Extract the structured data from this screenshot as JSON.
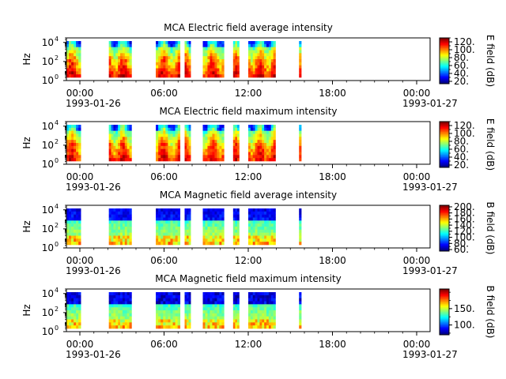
{
  "chart_data": [
    {
      "type": "heatmap",
      "title": "MCA  Electric field average intensity",
      "ylabel": "Hz",
      "ylim": [
        1,
        30000
      ],
      "yscale": "log",
      "yticks": [
        {
          "base": "10",
          "exp": "0"
        },
        {
          "base": "10",
          "exp": "2"
        },
        {
          "base": "10",
          "exp": "4"
        }
      ],
      "xticks": [
        "00:00",
        "06:00",
        "12:00",
        "18:00",
        "00:00"
      ],
      "xdates": [
        "1993-01-26",
        "1993-01-27"
      ],
      "colorbar": {
        "label": "E field (dB)",
        "range": [
          14,
          130
        ],
        "ticks": [
          "20.",
          "40.",
          "60.",
          "80.",
          "100.",
          "120."
        ]
      },
      "segments": [
        [
          0.0,
          0.95
        ],
        [
          2.8,
          4.3
        ],
        [
          5.9,
          7.5
        ],
        [
          7.8,
          8.2
        ],
        [
          9.0,
          10.4
        ],
        [
          11.0,
          11.4
        ],
        [
          12.0,
          13.8
        ],
        [
          15.35,
          15.5
        ]
      ],
      "kind": "electric"
    },
    {
      "type": "heatmap",
      "title": "MCA  Electric field maximum intensity",
      "ylabel": "Hz",
      "ylim": [
        1,
        30000
      ],
      "yscale": "log",
      "yticks": [
        {
          "base": "10",
          "exp": "0"
        },
        {
          "base": "10",
          "exp": "2"
        },
        {
          "base": "10",
          "exp": "4"
        }
      ],
      "xticks": [
        "00:00",
        "06:00",
        "12:00",
        "18:00",
        "00:00"
      ],
      "xdates": [
        "1993-01-26",
        "1993-01-27"
      ],
      "colorbar": {
        "label": "E field (dB)",
        "range": [
          14,
          130
        ],
        "ticks": [
          "20.",
          "40.",
          "60.",
          "80.",
          "100.",
          "120."
        ]
      },
      "segments": [
        [
          0.0,
          0.95
        ],
        [
          2.8,
          4.3
        ],
        [
          5.9,
          7.5
        ],
        [
          7.8,
          8.2
        ],
        [
          9.0,
          10.4
        ],
        [
          11.0,
          11.4
        ],
        [
          12.0,
          13.8
        ],
        [
          15.35,
          15.5
        ]
      ],
      "kind": "electric"
    },
    {
      "type": "heatmap",
      "title": "MCA  Magnetic field average intensity",
      "ylabel": "Hz",
      "ylim": [
        1,
        30000
      ],
      "yscale": "log",
      "yticks": [
        {
          "base": "10",
          "exp": "0"
        },
        {
          "base": "10",
          "exp": "2"
        },
        {
          "base": "10",
          "exp": "4"
        }
      ],
      "xticks": [
        "00:00",
        "06:00",
        "12:00",
        "18:00",
        "00:00"
      ],
      "xdates": [
        "1993-01-26",
        "1993-01-27"
      ],
      "colorbar": {
        "label": "B field (dB)",
        "range": [
          55,
          205
        ],
        "ticks": [
          "60.",
          "80.",
          "100.",
          "120.",
          "140.",
          "160.",
          "180.",
          "200."
        ]
      },
      "segments": [
        [
          0.0,
          0.95
        ],
        [
          2.8,
          4.3
        ],
        [
          5.9,
          7.5
        ],
        [
          7.8,
          8.2
        ],
        [
          9.0,
          10.4
        ],
        [
          11.0,
          11.4
        ],
        [
          12.0,
          13.8
        ],
        [
          15.35,
          15.5
        ]
      ],
      "kind": "magnetic"
    },
    {
      "type": "heatmap",
      "title": "MCA  Magnetic field maximum intensity",
      "ylabel": "Hz",
      "ylim": [
        1,
        30000
      ],
      "yscale": "log",
      "yticks": [
        {
          "base": "10",
          "exp": "0"
        },
        {
          "base": "10",
          "exp": "2"
        },
        {
          "base": "10",
          "exp": "4"
        }
      ],
      "xticks": [
        "00:00",
        "06:00",
        "12:00",
        "18:00",
        "00:00"
      ],
      "xdates": [
        "1993-01-26",
        "1993-01-27"
      ],
      "colorbar": {
        "label": "B field (dB)",
        "range": [
          70,
          210
        ],
        "ticks": [
          "100.",
          "150."
        ]
      },
      "segments": [
        [
          0.0,
          0.95
        ],
        [
          2.8,
          4.3
        ],
        [
          5.9,
          7.5
        ],
        [
          7.8,
          8.2
        ],
        [
          9.0,
          10.4
        ],
        [
          11.0,
          11.4
        ],
        [
          12.0,
          13.8
        ],
        [
          15.35,
          15.5
        ]
      ],
      "kind": "magnetic"
    }
  ]
}
